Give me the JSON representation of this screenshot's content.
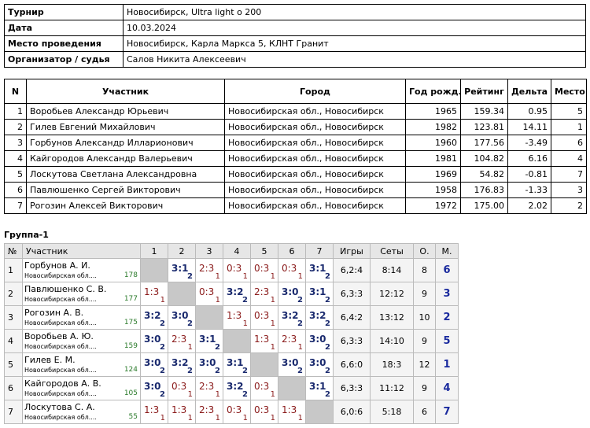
{
  "info": {
    "rows": [
      [
        "Турнир",
        "Новосибирск, Ultra light о 200"
      ],
      [
        "Дата",
        "10.03.2024"
      ],
      [
        "Место проведения",
        "Новосибирск, Карла Маркса 5, КЛНТ Гранит"
      ],
      [
        "Организатор / судья",
        "Салов Никита Алексеевич"
      ]
    ]
  },
  "players": {
    "header": [
      "N",
      "Участник",
      "Город",
      "Год рожд.",
      "Рейтинг",
      "Дельта",
      "Место"
    ],
    "rows": [
      [
        "1",
        "Воробьев Александр Юрьевич",
        "Новосибирская обл., Новосибирск",
        "1965",
        "159.34",
        "0.95",
        "5"
      ],
      [
        "2",
        "Гилев Евгений Михайлович",
        "Новосибирская обл., Новосибирск",
        "1982",
        "123.81",
        "14.11",
        "1"
      ],
      [
        "3",
        "Горбунов Александр Илларионович",
        "Новосибирская обл., Новосибирск",
        "1960",
        "177.56",
        "-3.49",
        "6"
      ],
      [
        "4",
        "Кайгородов Александр Валерьевич",
        "Новосибирская обл., Новосибирск",
        "1981",
        "104.82",
        "6.16",
        "4"
      ],
      [
        "5",
        "Лоскутова Светлана Александровна",
        "Новосибирская обл., Новосибирск",
        "1969",
        "54.82",
        "-0.81",
        "7"
      ],
      [
        "6",
        "Павлюшенко Сергей Викторович",
        "Новосибирская обл., Новосибирск",
        "1958",
        "176.83",
        "-1.33",
        "3"
      ],
      [
        "7",
        "Рогозин Алексей Викторович",
        "Новосибирская обл., Новосибирск",
        "1972",
        "175.00",
        "2.02",
        "2"
      ]
    ]
  },
  "group": {
    "title": "Группа-1",
    "header": [
      "№",
      "Участник",
      "1",
      "2",
      "3",
      "4",
      "5",
      "6",
      "7",
      "Игры",
      "Сеты",
      "О.",
      "М."
    ],
    "rows": [
      {
        "n": "1",
        "name": "Горбунов А. И.",
        "city": "Новосибирская обл....",
        "rating": "178",
        "cells": [
          null,
          [
            "3:1",
            "2"
          ],
          [
            "2:3",
            "1"
          ],
          [
            "0:3",
            "1"
          ],
          [
            "0:3",
            "1"
          ],
          [
            "0:3",
            "1"
          ],
          [
            "3:1",
            "2"
          ]
        ],
        "games": "6,2:4",
        "sets": "8:14",
        "points": "8",
        "place": "6"
      },
      {
        "n": "2",
        "name": "Павлюшенко С. В.",
        "city": "Новосибирская обл....",
        "rating": "177",
        "cells": [
          [
            "1:3",
            "1"
          ],
          null,
          [
            "0:3",
            "1"
          ],
          [
            "3:2",
            "2"
          ],
          [
            "2:3",
            "1"
          ],
          [
            "3:0",
            "2"
          ],
          [
            "3:1",
            "2"
          ]
        ],
        "games": "6,3:3",
        "sets": "12:12",
        "points": "9",
        "place": "3"
      },
      {
        "n": "3",
        "name": "Рогозин А. В.",
        "city": "Новосибирская обл....",
        "rating": "175",
        "cells": [
          [
            "3:2",
            "2"
          ],
          [
            "3:0",
            "2"
          ],
          null,
          [
            "1:3",
            "1"
          ],
          [
            "0:3",
            "1"
          ],
          [
            "3:2",
            "2"
          ],
          [
            "3:2",
            "2"
          ]
        ],
        "games": "6,4:2",
        "sets": "13:12",
        "points": "10",
        "place": "2"
      },
      {
        "n": "4",
        "name": "Воробьев А. Ю.",
        "city": "Новосибирская обл....",
        "rating": "159",
        "cells": [
          [
            "3:0",
            "2"
          ],
          [
            "2:3",
            "1"
          ],
          [
            "3:1",
            "2"
          ],
          null,
          [
            "1:3",
            "1"
          ],
          [
            "2:3",
            "1"
          ],
          [
            "3:0",
            "2"
          ]
        ],
        "games": "6,3:3",
        "sets": "14:10",
        "points": "9",
        "place": "5"
      },
      {
        "n": "5",
        "name": "Гилев Е. М.",
        "city": "Новосибирская обл....",
        "rating": "124",
        "cells": [
          [
            "3:0",
            "2"
          ],
          [
            "3:2",
            "2"
          ],
          [
            "3:0",
            "2"
          ],
          [
            "3:1",
            "2"
          ],
          null,
          [
            "3:0",
            "2"
          ],
          [
            "3:0",
            "2"
          ]
        ],
        "games": "6,6:0",
        "sets": "18:3",
        "points": "12",
        "place": "1"
      },
      {
        "n": "6",
        "name": "Кайгородов А. В.",
        "city": "Новосибирская обл....",
        "rating": "105",
        "cells": [
          [
            "3:0",
            "2"
          ],
          [
            "0:3",
            "1"
          ],
          [
            "2:3",
            "1"
          ],
          [
            "3:2",
            "2"
          ],
          [
            "0:3",
            "1"
          ],
          null,
          [
            "3:1",
            "2"
          ]
        ],
        "games": "6,3:3",
        "sets": "11:12",
        "points": "9",
        "place": "4"
      },
      {
        "n": "7",
        "name": "Лоскутова С. А.",
        "city": "Новосибирская обл....",
        "rating": "55",
        "cells": [
          [
            "1:3",
            "1"
          ],
          [
            "1:3",
            "1"
          ],
          [
            "2:3",
            "1"
          ],
          [
            "0:3",
            "1"
          ],
          [
            "0:3",
            "1"
          ],
          [
            "1:3",
            "1"
          ],
          null
        ],
        "games": "6,0:6",
        "sets": "5:18",
        "points": "6",
        "place": "7"
      }
    ]
  }
}
